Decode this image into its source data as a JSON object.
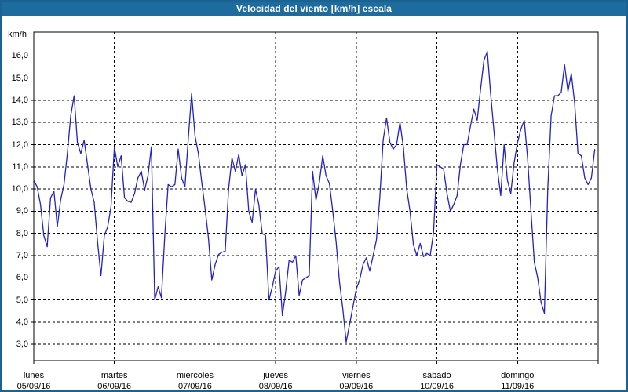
{
  "window": {
    "title": "Velocidad del viento [km/h] escala",
    "titlebar_color": "#1e6b9e",
    "border_color": "#1a6292",
    "background_color": "#ffffff"
  },
  "chart_data": {
    "type": "line",
    "title": "Velocidad del viento [km/h] escala",
    "ylabel": "km/h",
    "xlabel": "",
    "ylim": [
      2.3,
      17.1
    ],
    "y_tick_values": [
      16,
      15,
      14,
      13,
      12,
      11,
      10,
      9,
      8,
      7,
      6,
      5,
      4,
      3
    ],
    "y_ticks": [
      "16,0",
      "15,0",
      "14,0",
      "13,0",
      "12,0",
      "11,0",
      "10,0",
      "9,0",
      "8,0",
      "7,0",
      "6,0",
      "5,0",
      "4,0",
      "3,0"
    ],
    "grid": "dashed-black",
    "legend_position": "none",
    "points_per_day": 24,
    "x_unit": "hours",
    "days": [
      {
        "day": "lunes",
        "date": "05/09/16"
      },
      {
        "day": "martes",
        "date": "06/09/16"
      },
      {
        "day": "miércoles",
        "date": "07/09/16"
      },
      {
        "day": "jueves",
        "date": "08/09/16"
      },
      {
        "day": "viernes",
        "date": "09/09/16"
      },
      {
        "day": "sábado",
        "date": "10/09/16"
      },
      {
        "day": "domingo",
        "date": "11/09/16"
      }
    ],
    "series": [
      {
        "name": "Velocidad del viento",
        "color": "#2121c8",
        "values": [
          10.4,
          10.1,
          9.3,
          7.9,
          7.4,
          9.6,
          9.9,
          8.3,
          9.5,
          10.2,
          11.6,
          13.3,
          14.2,
          12.1,
          11.6,
          12.2,
          11.1,
          10.0,
          9.4,
          7.6,
          6.1,
          7.9,
          8.3,
          9.2,
          11.9,
          11.0,
          11.5,
          9.6,
          9.45,
          9.4,
          9.8,
          10.5,
          10.8,
          9.95,
          10.6,
          11.9,
          5.0,
          5.6,
          5.1,
          7.9,
          10.2,
          10.1,
          10.2,
          11.8,
          10.5,
          10.1,
          12.3,
          14.3,
          12.4,
          11.6,
          10.3,
          9.1,
          7.8,
          5.9,
          6.6,
          7.05,
          7.15,
          7.2,
          10.0,
          11.4,
          10.8,
          11.55,
          10.6,
          11.1,
          9.0,
          8.5,
          10.0,
          9.3,
          8.0,
          7.9,
          5.0,
          5.6,
          6.3,
          6.5,
          4.3,
          5.4,
          6.8,
          6.7,
          7.0,
          5.2,
          5.9,
          6.0,
          6.1,
          10.8,
          9.5,
          10.3,
          11.5,
          10.6,
          10.25,
          9.0,
          7.6,
          5.8,
          4.6,
          3.1,
          3.9,
          4.7,
          5.5,
          5.9,
          6.6,
          6.9,
          6.3,
          7.0,
          7.7,
          9.6,
          12.2,
          13.2,
          12.1,
          11.8,
          12.0,
          13.0,
          11.9,
          10.0,
          9.0,
          7.5,
          7.0,
          7.55,
          6.95,
          7.1,
          7.0,
          8.05,
          11.1,
          11.0,
          10.9,
          9.8,
          9.0,
          9.3,
          9.7,
          11.1,
          12.0,
          12.0,
          12.85,
          13.6,
          13.1,
          14.5,
          15.8,
          16.2,
          14.3,
          12.6,
          10.9,
          9.7,
          12.0,
          10.4,
          9.8,
          11.2,
          12.1,
          12.7,
          13.1,
          11.4,
          9.0,
          6.7,
          6.0,
          4.9,
          4.4,
          10.0,
          13.3,
          14.2,
          14.2,
          14.35,
          15.6,
          14.4,
          15.2,
          13.9,
          11.6,
          11.5,
          10.5,
          10.2,
          10.5,
          11.8
        ]
      }
    ]
  }
}
